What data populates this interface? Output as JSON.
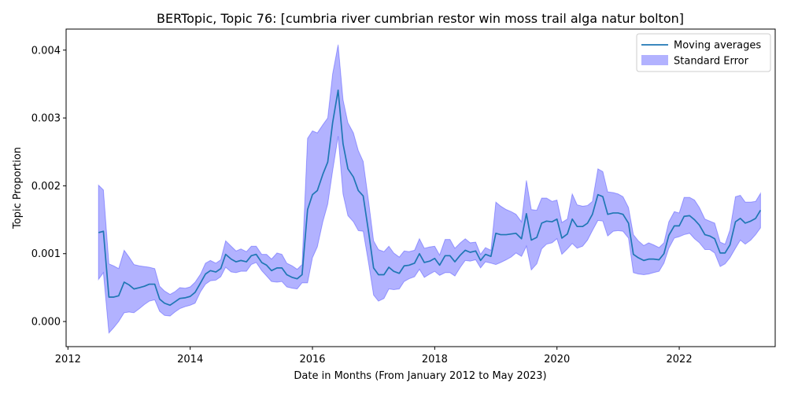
{
  "chart_data": {
    "type": "area",
    "title": "BERTopic, Topic 76: [cumbria river cumbrian restor win moss trail alga natur bolton]",
    "xlabel": "Date in Months (From January 2012 to May 2023)",
    "ylabel": "Topic Proportion",
    "xlim": [
      2011.97,
      2023.57
    ],
    "ylim": [
      -0.00037,
      0.00431
    ],
    "x_ticks": [
      2012,
      2014,
      2016,
      2018,
      2020,
      2022
    ],
    "x_tick_labels": [
      "2012",
      "2014",
      "2016",
      "2018",
      "2020",
      "2022"
    ],
    "y_ticks": [
      0.0,
      0.001,
      0.002,
      0.003,
      0.004
    ],
    "y_tick_labels": [
      "0.000",
      "0.001",
      "0.002",
      "0.003",
      "0.004"
    ],
    "grid": false,
    "legend_position": "top-right",
    "colors": {
      "line": "#1f77b4",
      "band": "#0000ff",
      "band_opacity": 0.3
    },
    "series": [
      {
        "name": "Moving averages",
        "kind": "line",
        "x": [
          2012.5,
          2012.58,
          2012.67,
          2012.75,
          2012.83,
          2012.92,
          2013.0,
          2013.08,
          2013.17,
          2013.25,
          2013.33,
          2013.42,
          2013.5,
          2013.58,
          2013.67,
          2013.75,
          2013.83,
          2013.92,
          2014.0,
          2014.08,
          2014.17,
          2014.25,
          2014.33,
          2014.42,
          2014.5,
          2014.58,
          2014.67,
          2014.75,
          2014.83,
          2014.92,
          2015.0,
          2015.08,
          2015.17,
          2015.25,
          2015.33,
          2015.42,
          2015.5,
          2015.58,
          2015.67,
          2015.75,
          2015.83,
          2015.92,
          2016.0,
          2016.08,
          2016.17,
          2016.25,
          2016.33,
          2016.42,
          2016.5,
          2016.58,
          2016.67,
          2016.75,
          2016.83,
          2016.92,
          2017.0,
          2017.08,
          2017.17,
          2017.25,
          2017.33,
          2017.42,
          2017.5,
          2017.58,
          2017.67,
          2017.75,
          2017.83,
          2017.92,
          2018.0,
          2018.08,
          2018.17,
          2018.25,
          2018.33,
          2018.42,
          2018.5,
          2018.58,
          2018.67,
          2018.75,
          2018.83,
          2018.92,
          2019.0,
          2019.08,
          2019.17,
          2019.25,
          2019.33,
          2019.42,
          2019.5,
          2019.58,
          2019.67,
          2019.75,
          2019.83,
          2019.92,
          2020.0,
          2020.08,
          2020.17,
          2020.25,
          2020.33,
          2020.42,
          2020.5,
          2020.58,
          2020.67,
          2020.75,
          2020.83,
          2020.92,
          2021.0,
          2021.08,
          2021.17,
          2021.25,
          2021.33,
          2021.42,
          2021.5,
          2021.58,
          2021.67,
          2021.75,
          2021.83,
          2021.92,
          2022.0,
          2022.08,
          2022.17,
          2022.25,
          2022.33,
          2022.42,
          2022.5,
          2022.58,
          2022.67,
          2022.75,
          2022.83,
          2022.92,
          2023.0,
          2023.08,
          2023.17,
          2023.25,
          2023.33
        ],
        "y": [
          0.00131,
          0.00133,
          0.00036,
          0.00036,
          0.00038,
          0.00058,
          0.00054,
          0.00048,
          0.0005,
          0.00052,
          0.00055,
          0.00055,
          0.00033,
          0.00027,
          0.00024,
          0.00029,
          0.00034,
          0.00035,
          0.00037,
          0.00043,
          0.00057,
          0.0007,
          0.00075,
          0.00073,
          0.00078,
          0.00099,
          0.00092,
          0.00088,
          0.0009,
          0.00088,
          0.00097,
          0.00099,
          0.00087,
          0.00083,
          0.00075,
          0.00079,
          0.00079,
          0.00069,
          0.00065,
          0.00063,
          0.00069,
          0.00165,
          0.00187,
          0.00193,
          0.00217,
          0.00235,
          0.00293,
          0.00341,
          0.00262,
          0.00225,
          0.00213,
          0.00193,
          0.00185,
          0.00131,
          0.00079,
          0.00069,
          0.00069,
          0.0008,
          0.00074,
          0.00071,
          0.00082,
          0.00083,
          0.00086,
          0.001,
          0.00087,
          0.00089,
          0.00093,
          0.00083,
          0.00097,
          0.00097,
          0.00088,
          0.00098,
          0.00105,
          0.00102,
          0.00104,
          0.0009,
          0.00099,
          0.00096,
          0.0013,
          0.00128,
          0.00128,
          0.00129,
          0.0013,
          0.00122,
          0.00159,
          0.0012,
          0.00124,
          0.00145,
          0.00148,
          0.00147,
          0.00151,
          0.00123,
          0.00129,
          0.00151,
          0.0014,
          0.0014,
          0.00145,
          0.00158,
          0.00187,
          0.00184,
          0.00158,
          0.0016,
          0.0016,
          0.00158,
          0.00145,
          0.00099,
          0.00094,
          0.0009,
          0.00092,
          0.00092,
          0.00091,
          0.001,
          0.00127,
          0.00141,
          0.00141,
          0.00155,
          0.00156,
          0.0015,
          0.00142,
          0.00128,
          0.00126,
          0.00122,
          0.00101,
          0.00101,
          0.00113,
          0.00147,
          0.00152,
          0.00145,
          0.00148,
          0.00152,
          0.00164
        ]
      },
      {
        "name": "Standard Error",
        "kind": "band",
        "upper": [
          0.00201,
          0.00194,
          0.00085,
          0.00082,
          0.00078,
          0.00105,
          0.00095,
          0.00084,
          0.00082,
          0.00081,
          0.0008,
          0.00078,
          0.00052,
          0.00045,
          0.0004,
          0.00044,
          0.0005,
          0.00049,
          0.00051,
          0.00058,
          0.0007,
          0.00086,
          0.0009,
          0.00086,
          0.00091,
          0.00119,
          0.00111,
          0.00104,
          0.00107,
          0.00103,
          0.00111,
          0.00111,
          0.00099,
          0.00099,
          0.00092,
          0.00101,
          0.00099,
          0.00086,
          0.00082,
          0.00077,
          0.00084,
          0.0027,
          0.00281,
          0.00278,
          0.0029,
          0.003,
          0.00365,
          0.00408,
          0.00327,
          0.00293,
          0.00278,
          0.00252,
          0.00236,
          0.00176,
          0.00119,
          0.00106,
          0.00103,
          0.00111,
          0.00101,
          0.00095,
          0.00104,
          0.00103,
          0.00105,
          0.00122,
          0.00108,
          0.0011,
          0.00111,
          0.00098,
          0.00121,
          0.00121,
          0.00108,
          0.00116,
          0.00122,
          0.00116,
          0.00117,
          0.00099,
          0.00109,
          0.00105,
          0.00176,
          0.0017,
          0.00165,
          0.00162,
          0.00158,
          0.00147,
          0.00208,
          0.00165,
          0.00164,
          0.00182,
          0.00182,
          0.00177,
          0.00179,
          0.00146,
          0.00151,
          0.00188,
          0.00172,
          0.0017,
          0.00171,
          0.00177,
          0.00225,
          0.00221,
          0.00191,
          0.0019,
          0.00188,
          0.00184,
          0.00168,
          0.00128,
          0.00119,
          0.00112,
          0.00116,
          0.00113,
          0.00109,
          0.00116,
          0.00147,
          0.00162,
          0.0016,
          0.00183,
          0.00183,
          0.00179,
          0.00168,
          0.00151,
          0.00148,
          0.00145,
          0.00117,
          0.00114,
          0.00135,
          0.00184,
          0.00186,
          0.00176,
          0.00176,
          0.00177,
          0.00189
        ],
        "lower": [
          0.00062,
          0.00072,
          -0.00017,
          -9e-05,
          0.0,
          0.00013,
          0.00014,
          0.00013,
          0.00019,
          0.00025,
          0.0003,
          0.00032,
          0.00015,
          9e-05,
          8e-05,
          0.00014,
          0.00019,
          0.00022,
          0.00024,
          0.00027,
          0.00044,
          0.00055,
          0.0006,
          0.00061,
          0.00066,
          0.0008,
          0.00073,
          0.00072,
          0.00074,
          0.00074,
          0.00084,
          0.00087,
          0.00075,
          0.00067,
          0.00059,
          0.00058,
          0.00059,
          0.00051,
          0.00049,
          0.00048,
          0.00057,
          0.00057,
          0.00094,
          0.0011,
          0.00147,
          0.00173,
          0.00222,
          0.00273,
          0.00188,
          0.00156,
          0.00147,
          0.00134,
          0.00133,
          0.00085,
          0.00039,
          0.0003,
          0.00034,
          0.00048,
          0.00047,
          0.00048,
          0.00059,
          0.00063,
          0.00066,
          0.00077,
          0.00065,
          0.0007,
          0.00074,
          0.00068,
          0.00072,
          0.00072,
          0.00067,
          0.0008,
          0.0009,
          0.00089,
          0.00091,
          0.00079,
          0.00088,
          0.00086,
          0.00084,
          0.00087,
          0.00091,
          0.00095,
          0.00101,
          0.00096,
          0.00111,
          0.00076,
          0.00085,
          0.00107,
          0.00114,
          0.00116,
          0.00122,
          0.00099,
          0.00107,
          0.00115,
          0.00108,
          0.00111,
          0.0012,
          0.00134,
          0.00149,
          0.00148,
          0.00126,
          0.00133,
          0.00134,
          0.00133,
          0.00123,
          0.00072,
          0.0007,
          0.00069,
          0.0007,
          0.00072,
          0.00074,
          0.00086,
          0.00108,
          0.00123,
          0.00125,
          0.00128,
          0.0013,
          0.00122,
          0.00116,
          0.00106,
          0.00106,
          0.00101,
          0.00081,
          0.00085,
          0.00094,
          0.00108,
          0.0012,
          0.00114,
          0.0012,
          0.00128,
          0.00138
        ]
      }
    ]
  }
}
